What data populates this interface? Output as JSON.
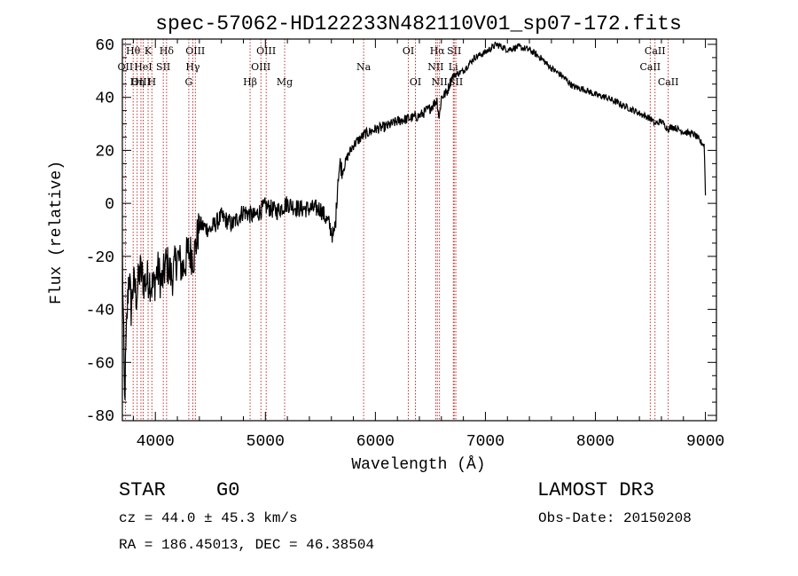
{
  "chart_data": {
    "type": "line",
    "title": "spec-57062-HD122233N482110V01_sp07-172.fits",
    "xlabel": "Wavelength (Å)",
    "ylabel": "Flux (relative)",
    "xlim": [
      3700,
      9100
    ],
    "ylim": [
      -82,
      62
    ],
    "xticks": [
      4000,
      5000,
      6000,
      7000,
      8000,
      9000
    ],
    "yticks": [
      -80,
      -60,
      -40,
      -20,
      0,
      20,
      40,
      60
    ],
    "grid": false,
    "series": [
      {
        "name": "flux",
        "x": [
          3700,
          3720,
          3740,
          3760,
          3780,
          3800,
          3830,
          3860,
          3900,
          3940,
          3980,
          4020,
          4060,
          4100,
          4150,
          4200,
          4250,
          4300,
          4350,
          4400,
          4500,
          4600,
          4700,
          4800,
          4900,
          5000,
          5100,
          5200,
          5300,
          5400,
          5500,
          5580,
          5620,
          5640,
          5660,
          5680,
          5700,
          5750,
          5800,
          5900,
          6000,
          6100,
          6200,
          6300,
          6400,
          6500,
          6560,
          6580,
          6600,
          6650,
          6700,
          6800,
          6900,
          7000,
          7100,
          7200,
          7300,
          7400,
          7500,
          7600,
          7700,
          7800,
          7900,
          8000,
          8100,
          8200,
          8300,
          8400,
          8500,
          8540,
          8600,
          8660,
          8700,
          8800,
          8900,
          8960,
          8990,
          9000,
          9002
        ],
        "values": [
          -20,
          -75,
          -45,
          -25,
          -40,
          -30,
          -35,
          -25,
          -30,
          -28,
          -32,
          -25,
          -30,
          -22,
          -28,
          -20,
          -25,
          -18,
          -20,
          -8,
          -10,
          -5,
          -8,
          -3,
          -5,
          -1,
          -3,
          0,
          -2,
          -2,
          -2,
          -8,
          -13,
          -6,
          10,
          15,
          12,
          18,
          22,
          26,
          28,
          29,
          31,
          32,
          33,
          36,
          39,
          32,
          40,
          42,
          48,
          50,
          55,
          57,
          60,
          58,
          59,
          58,
          55,
          51,
          48,
          44,
          43,
          41,
          40,
          38,
          36,
          34,
          32,
          30,
          31,
          28,
          29,
          27,
          26,
          23,
          22,
          3,
          1
        ]
      }
    ],
    "spectral_lines": [
      {
        "label": "Hθ",
        "x": 3798,
        "row": 0
      },
      {
        "label": "OII",
        "x": 3727,
        "row": 1
      },
      {
        "label": "OIII",
        "x": 3869,
        "row": 2
      },
      {
        "label": "K",
        "x": 3934,
        "row": 0
      },
      {
        "label": "HeI",
        "x": 3889,
        "row": 1
      },
      {
        "label": "Hη",
        "x": 3835,
        "row": 2
      },
      {
        "label": "SII",
        "x": 4072,
        "row": 1
      },
      {
        "label": "H",
        "x": 3968,
        "row": 2
      },
      {
        "label": "Hδ",
        "x": 4102,
        "row": 0
      },
      {
        "label": "OIII",
        "x": 4363,
        "row": 0
      },
      {
        "label": "Hγ",
        "x": 4340,
        "row": 1
      },
      {
        "label": "G",
        "x": 4304,
        "row": 2
      },
      {
        "label": "Hβ",
        "x": 4861,
        "row": 2
      },
      {
        "label": "OIII",
        "x": 5007,
        "row": 0
      },
      {
        "label": "OIII",
        "x": 4959,
        "row": 1
      },
      {
        "label": "Mg",
        "x": 5175,
        "row": 2
      },
      {
        "label": "Na",
        "x": 5893,
        "row": 1
      },
      {
        "label": "OI",
        "x": 6300,
        "row": 0
      },
      {
        "label": "OI",
        "x": 6364,
        "row": 2
      },
      {
        "label": "Hα",
        "x": 6563,
        "row": 0
      },
      {
        "label": "SII",
        "x": 6716,
        "row": 0
      },
      {
        "label": "NII",
        "x": 6548,
        "row": 1
      },
      {
        "label": "Li",
        "x": 6708,
        "row": 1
      },
      {
        "label": "NII",
        "x": 6583,
        "row": 2
      },
      {
        "label": "SII",
        "x": 6731,
        "row": 2
      },
      {
        "label": "CaII",
        "x": 8542,
        "row": 0
      },
      {
        "label": "CaII",
        "x": 8498,
        "row": 1
      },
      {
        "label": "CaII",
        "x": 8662,
        "row": 2
      }
    ]
  },
  "info": {
    "object_class": "STAR",
    "subclass": "G0",
    "survey": "LAMOST DR3",
    "cz": "cz = 44.0 ± 45.3 km/s",
    "obs_date": "Obs-Date: 20150208",
    "coords": "RA = 186.45013, DEC =  46.38504"
  }
}
